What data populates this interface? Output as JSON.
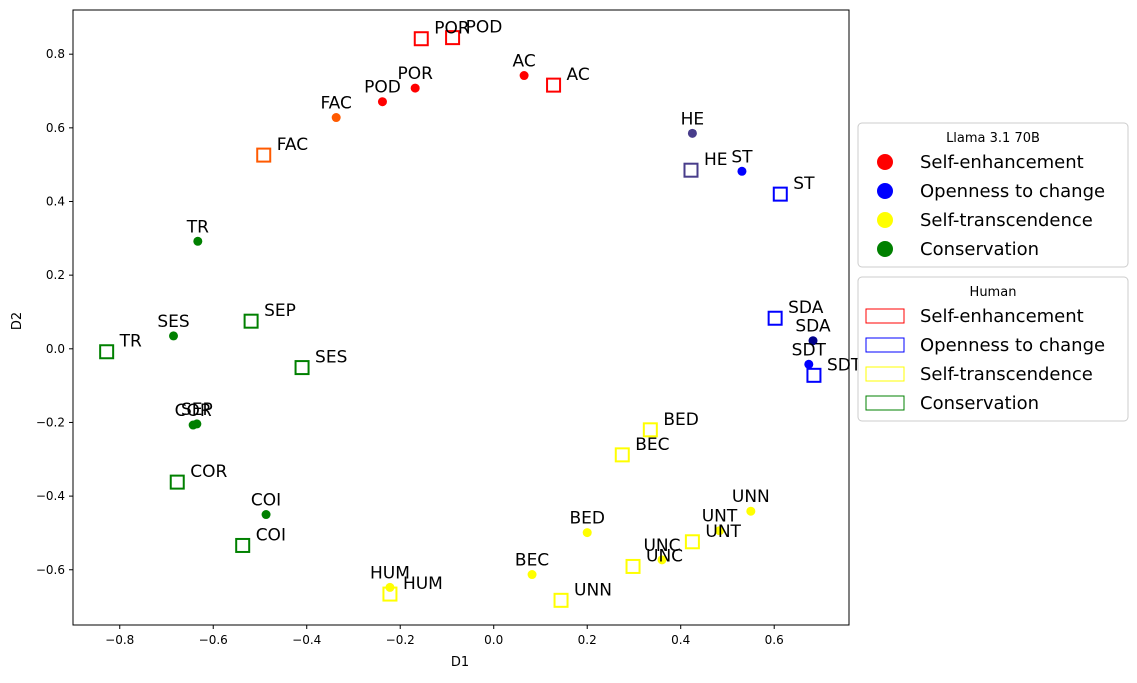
{
  "chart_data": {
    "type": "scatter",
    "title": "",
    "xlabel": "D1",
    "ylabel": "D2",
    "xlim": [
      -0.9,
      0.76
    ],
    "ylim": [
      -0.75,
      0.92
    ],
    "x_ticks": [
      -0.8,
      -0.6,
      -0.4,
      -0.2,
      0.0,
      0.2,
      0.4,
      0.6
    ],
    "y_ticks": [
      -0.6,
      -0.4,
      -0.2,
      0.0,
      0.2,
      0.4,
      0.6,
      0.8
    ],
    "x_tick_labels": [
      "−0.8",
      "−0.6",
      "−0.4",
      "−0.2",
      "0.0",
      "0.2",
      "0.4",
      "0.6"
    ],
    "y_tick_labels": [
      "−0.6",
      "−0.4",
      "−0.2",
      "0.0",
      "0.2",
      "0.4",
      "0.6",
      "0.8"
    ],
    "grid": false,
    "legends": [
      {
        "title": "Llama 3.1 70B",
        "marker": "circle",
        "placement": "right-upper",
        "entries": [
          {
            "label": "Self-enhancement",
            "color": "#ff0000"
          },
          {
            "label": "Openness to change",
            "color": "#0000ff"
          },
          {
            "label": "Self-transcendence",
            "color": "#ffff00"
          },
          {
            "label": "Conservation",
            "color": "#008000"
          }
        ]
      },
      {
        "title": "Human",
        "marker": "square",
        "placement": "right-middle",
        "entries": [
          {
            "label": "Self-enhancement",
            "color": "#ff0000"
          },
          {
            "label": "Openness to change",
            "color": "#0000ff"
          },
          {
            "label": "Self-transcendence",
            "color": "#ffff00"
          },
          {
            "label": "Conservation",
            "color": "#008000"
          }
        ]
      }
    ],
    "series": [
      {
        "name": "Llama 3.1 70B",
        "marker": "circle",
        "points": [
          {
            "label": "POD",
            "x": -0.238,
            "y": 0.671,
            "color": "#ff0000"
          },
          {
            "label": "POR",
            "x": -0.168,
            "y": 0.708,
            "color": "#ff0000"
          },
          {
            "label": "AC",
            "x": 0.065,
            "y": 0.742,
            "color": "#ff0000"
          },
          {
            "label": "FAC",
            "x": -0.337,
            "y": 0.628,
            "color": "#ff5a00"
          },
          {
            "label": "HE",
            "x": 0.425,
            "y": 0.585,
            "color": "#483d8b"
          },
          {
            "label": "ST",
            "x": 0.531,
            "y": 0.482,
            "color": "#0000ff"
          },
          {
            "label": "SDA",
            "x": 0.683,
            "y": 0.022,
            "color": "#00008b"
          },
          {
            "label": "SDT",
            "x": 0.674,
            "y": -0.042,
            "color": "#0000ff"
          },
          {
            "label": "TR",
            "x": -0.633,
            "y": 0.292,
            "color": "#008000"
          },
          {
            "label": "SES",
            "x": -0.685,
            "y": 0.035,
            "color": "#008000"
          },
          {
            "label": "COR",
            "x": -0.643,
            "y": -0.207,
            "color": "#008000"
          },
          {
            "label": "SEP",
            "x": -0.635,
            "y": -0.204,
            "color": "#008000"
          },
          {
            "label": "COI",
            "x": -0.487,
            "y": -0.45,
            "color": "#008000"
          },
          {
            "label": "BED",
            "x": 0.2,
            "y": -0.499,
            "color": "#ffff00"
          },
          {
            "label": "BEC",
            "x": 0.082,
            "y": -0.613,
            "color": "#ffff00"
          },
          {
            "label": "UNN",
            "x": 0.55,
            "y": -0.441,
            "color": "#ffff00"
          },
          {
            "label": "UNT",
            "x": 0.483,
            "y": -0.494,
            "color": "#ffff00"
          },
          {
            "label": "UNC",
            "x": 0.36,
            "y": -0.573,
            "color": "#ffff00"
          },
          {
            "label": "HUM",
            "x": -0.222,
            "y": -0.648,
            "color": "#ffff00"
          }
        ]
      },
      {
        "name": "Human",
        "marker": "square",
        "points": [
          {
            "label": "POR",
            "x": -0.155,
            "y": 0.842,
            "color": "#ff0000"
          },
          {
            "label": "POD",
            "x": -0.088,
            "y": 0.845,
            "color": "#ff0000"
          },
          {
            "label": "AC",
            "x": 0.128,
            "y": 0.716,
            "color": "#ff0000"
          },
          {
            "label": "FAC",
            "x": -0.492,
            "y": 0.526,
            "color": "#ff5a00"
          },
          {
            "label": "HE",
            "x": 0.422,
            "y": 0.485,
            "color": "#483d8b"
          },
          {
            "label": "ST",
            "x": 0.613,
            "y": 0.42,
            "color": "#0000ff"
          },
          {
            "label": "SDA",
            "x": 0.602,
            "y": 0.083,
            "color": "#0000ff"
          },
          {
            "label": "SDT",
            "x": 0.685,
            "y": -0.072,
            "color": "#0000ff"
          },
          {
            "label": "TR",
            "x": -0.828,
            "y": -0.008,
            "color": "#008000"
          },
          {
            "label": "SEP",
            "x": -0.519,
            "y": 0.075,
            "color": "#008000"
          },
          {
            "label": "SES",
            "x": -0.41,
            "y": -0.051,
            "color": "#008000"
          },
          {
            "label": "COR",
            "x": -0.677,
            "y": -0.362,
            "color": "#008000"
          },
          {
            "label": "COI",
            "x": -0.537,
            "y": -0.534,
            "color": "#008000"
          },
          {
            "label": "BED",
            "x": 0.335,
            "y": -0.22,
            "color": "#ffff00"
          },
          {
            "label": "BEC",
            "x": 0.275,
            "y": -0.288,
            "color": "#ffff00"
          },
          {
            "label": "UNT",
            "x": 0.425,
            "y": -0.524,
            "color": "#ffff00"
          },
          {
            "label": "UNC",
            "x": 0.298,
            "y": -0.591,
            "color": "#ffff00"
          },
          {
            "label": "UNN",
            "x": 0.144,
            "y": -0.683,
            "color": "#ffff00"
          },
          {
            "label": "HUM",
            "x": -0.222,
            "y": -0.666,
            "color": "#ffff00"
          }
        ]
      }
    ]
  }
}
